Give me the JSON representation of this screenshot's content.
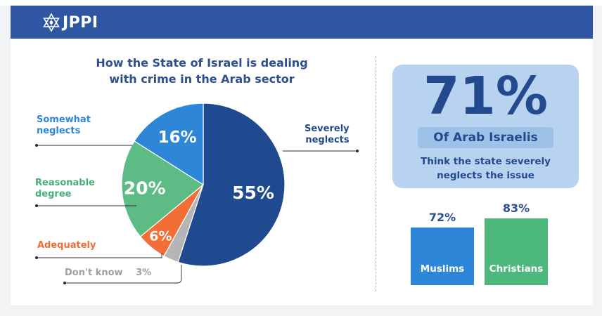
{
  "header": {
    "logo_text": "JPPI",
    "logo_icon": "star-of-david-icon"
  },
  "chart_data": [
    {
      "type": "pie",
      "title": "How the State of Israel  is dealing with crime in the Arab sector",
      "title_lines": [
        "How the State of Israel  is dealing",
        "with crime in the Arab sector"
      ],
      "slices": [
        {
          "name": "Severely neglects",
          "label_lines": [
            "Severely",
            "neglects"
          ],
          "value": 55,
          "value_label": "55%",
          "color": "#1f4a8f"
        },
        {
          "name": "Don't know",
          "label_lines": [
            "Don't know"
          ],
          "value": 3,
          "value_label": "3%",
          "color": "#b5b5b5"
        },
        {
          "name": "Adequately",
          "label_lines": [
            "Adequately"
          ],
          "value": 6,
          "value_label": "6%",
          "color": "#f26e36"
        },
        {
          "name": "Reasonable degree",
          "label_lines": [
            "Reasonable",
            "degree"
          ],
          "value": 20,
          "value_label": "20%",
          "color": "#5dbb85"
        },
        {
          "name": "Somewhat neglects",
          "label_lines": [
            "Somewhat",
            "neglects"
          ],
          "value": 16,
          "value_label": "16%",
          "color": "#2d86d8"
        }
      ]
    },
    {
      "type": "bar",
      "categories": [
        "Muslims",
        "Christians"
      ],
      "values": [
        72,
        83
      ],
      "value_labels": [
        "72%",
        "83%"
      ],
      "colors": [
        "#2d86d8",
        "#4db87c"
      ]
    }
  ],
  "kpi": {
    "value": "71%",
    "subject": "Of Arab Israelis",
    "desc_lines": [
      "Think the state severely",
      "neglects the issue"
    ]
  },
  "colors": {
    "header_bg": "#2e56a3",
    "title_text": "#2e4f8f",
    "kpi_bg": "#b8d3f0",
    "kpi_chip": "#9ec1e8",
    "kpi_text": "#234a8e"
  }
}
